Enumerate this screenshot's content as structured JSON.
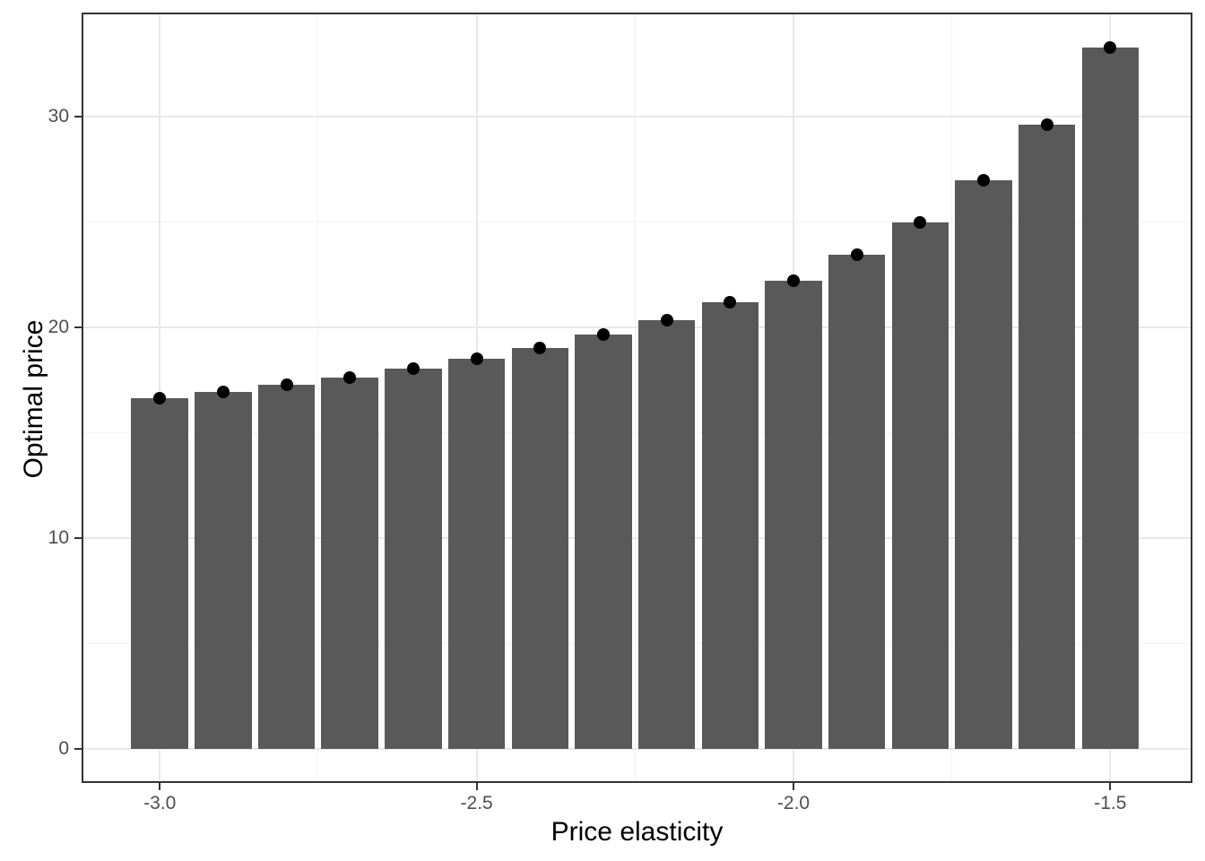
{
  "figure": {
    "background_color": "#FFFFFF"
  },
  "chart_data": {
    "type": "bar",
    "title": "",
    "xlabel": "Price elasticity",
    "ylabel": "Optimal price",
    "x": [
      -3.0,
      -2.9,
      -2.8,
      -2.7,
      -2.6,
      -2.5,
      -2.4,
      -2.3,
      -2.2,
      -2.1,
      -2.0,
      -1.9,
      -1.8,
      -1.7,
      -1.6,
      -1.5
    ],
    "values": [
      16.65,
      16.94,
      17.27,
      17.63,
      18.04,
      18.5,
      19.03,
      19.64,
      20.35,
      21.19,
      22.2,
      23.43,
      24.98,
      26.96,
      29.6,
      33.3
    ],
    "point_values": [
      16.65,
      16.94,
      17.27,
      17.63,
      18.04,
      18.5,
      19.03,
      19.64,
      20.35,
      21.19,
      22.2,
      23.43,
      24.98,
      26.96,
      29.6,
      33.3
    ],
    "x_tick_values": [
      -3.0,
      -2.5,
      -2.0,
      -1.5
    ],
    "x_tick_labels": [
      "-3.0",
      "-2.5",
      "-2.0",
      "-1.5"
    ],
    "x_minor_values": [
      -2.75,
      -2.25,
      -1.75
    ],
    "y_tick_values": [
      0,
      10,
      20,
      30
    ],
    "y_tick_labels": [
      "0",
      "10",
      "20",
      "30"
    ],
    "y_minor_values": [
      5,
      15,
      25
    ],
    "xlim": [
      -3.1235,
      -1.3703
    ],
    "ylim": [
      -1.62,
      34.96
    ],
    "bar_data_width": 0.09,
    "grid": true,
    "legend": "none",
    "colors": {
      "bar_fill": "#595959",
      "point": "#000000",
      "grid_major": "#E8E8E8",
      "grid_minor": "#F2F2F2",
      "panel_border": "#333333",
      "axis_text": "#4D4D4D",
      "axis_title": "#000000"
    }
  }
}
